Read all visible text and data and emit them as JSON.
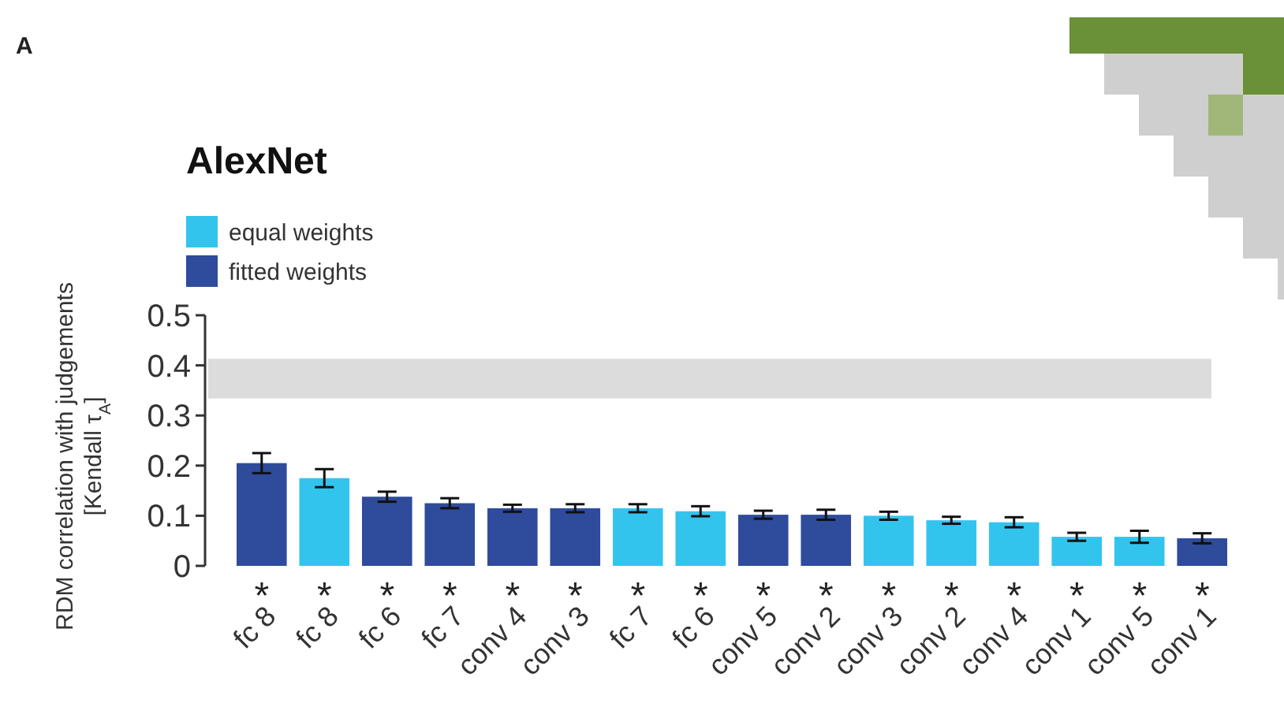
{
  "chart_data": {
    "type": "bar",
    "title": "AlexNet",
    "ylabel": "RDM correlation with judgements\n[Kendall τ$_{A}$]",
    "categories": [
      "fc 8",
      "fc 8",
      "fc 6",
      "fc 7",
      "conv 4",
      "conv 3",
      "fc 7",
      "fc 6",
      "conv 5",
      "conv 2",
      "conv 3",
      "conv 2",
      "conv 4",
      "conv 1",
      "conv 5",
      "conv 1"
    ],
    "stacked": true,
    "series": [
      {
        "name": "equal weights",
        "color": "#33c4ee",
        "values": [
          null,
          0.175,
          null,
          null,
          null,
          null,
          0.115,
          0.109,
          null,
          null,
          0.1,
          0.091,
          0.087,
          0.058,
          0.058,
          null
        ],
        "errors": [
          null,
          0.018,
          null,
          null,
          null,
          null,
          0.008,
          0.01,
          null,
          null,
          0.008,
          0.007,
          0.01,
          0.008,
          0.012,
          null
        ]
      },
      {
        "name": "fitted weights",
        "color": "#2e4b9c",
        "values": [
          0.205,
          null,
          0.138,
          0.125,
          0.115,
          0.115,
          null,
          null,
          0.102,
          0.102,
          null,
          null,
          null,
          null,
          null,
          0.055
        ],
        "errors": [
          0.02,
          null,
          0.01,
          0.01,
          0.007,
          0.008,
          null,
          null,
          0.008,
          0.01,
          null,
          null,
          null,
          null,
          null,
          0.01
        ]
      }
    ],
    "ylim": [
      0,
      0.5
    ],
    "yticks": [
      0,
      0.1,
      0.2,
      0.3,
      0.4,
      0.5
    ],
    "bands": [
      {
        "axis": "y",
        "from": 0.334,
        "to": 0.413,
        "color": "#dcdcdc"
      }
    ],
    "legend": "top left",
    "grid": false,
    "annotations": [
      "A",
      "*",
      "*",
      "*",
      "*",
      "*",
      "*",
      "*",
      "*",
      "*",
      "*",
      "*",
      "*",
      "*",
      "*",
      "*",
      "*"
    ]
  }
}
